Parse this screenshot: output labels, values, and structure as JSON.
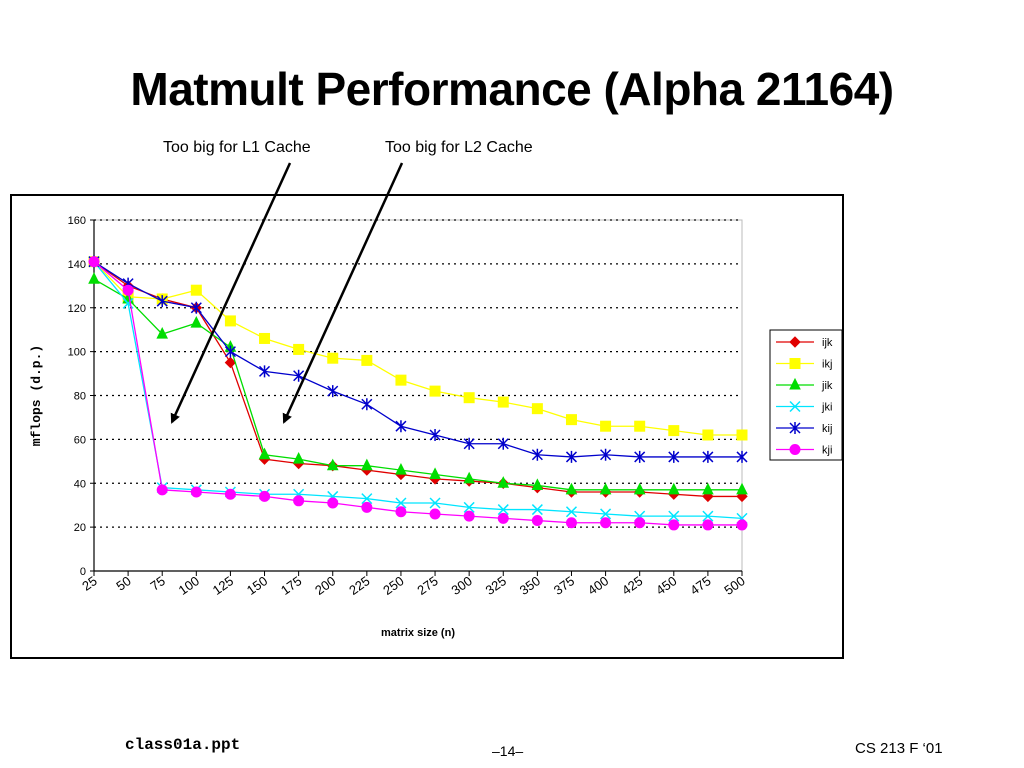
{
  "slide": {
    "title": "Matmult Performance (Alpha 21164)",
    "annotation_l1": "Too big for L1 Cache",
    "annotation_l2": "Too big for L2 Cache",
    "footer_left": "class01a.ppt",
    "footer_center": "–14–",
    "footer_right": "CS 213 F ‘01"
  },
  "chart_data": {
    "type": "line",
    "title": "",
    "xlabel": "matrix size (n)",
    "ylabel": "mflops (d.p.)",
    "ylim": [
      0,
      160
    ],
    "yticks": [
      0,
      20,
      40,
      60,
      80,
      100,
      120,
      140,
      160
    ],
    "grid": "dotted horizontal",
    "legend_position": "right",
    "categories": [
      "25",
      "50",
      "75",
      "100",
      "125",
      "150",
      "175",
      "200",
      "225",
      "250",
      "275",
      "300",
      "325",
      "350",
      "375",
      "400",
      "425",
      "450",
      "475",
      "500"
    ],
    "series": [
      {
        "name": "ijk",
        "color": "#e00000",
        "marker": "diamond",
        "values": [
          141,
          130,
          124,
          120,
          95,
          51,
          49,
          48,
          46,
          44,
          42,
          41,
          40,
          38,
          36,
          36,
          36,
          35,
          34,
          34
        ]
      },
      {
        "name": "ikj",
        "color": "#ffff00",
        "marker": "square",
        "values": [
          141,
          125,
          124,
          128,
          114,
          106,
          101,
          97,
          96,
          87,
          82,
          79,
          77,
          74,
          69,
          66,
          66,
          64,
          62,
          62
        ]
      },
      {
        "name": "jik",
        "color": "#00dd00",
        "marker": "triangle",
        "values": [
          133,
          124,
          108,
          113,
          102,
          53,
          51,
          48,
          48,
          46,
          44,
          42,
          40,
          39,
          37,
          37,
          37,
          37,
          37,
          37
        ]
      },
      {
        "name": "jki",
        "color": "#00e5ff",
        "marker": "x",
        "values": [
          141,
          122,
          38,
          37,
          36,
          35,
          35,
          34,
          33,
          31,
          31,
          29,
          28,
          28,
          27,
          26,
          25,
          25,
          25,
          24
        ]
      },
      {
        "name": "kij",
        "color": "#0000cc",
        "marker": "star",
        "values": [
          141,
          131,
          123,
          120,
          100,
          91,
          89,
          82,
          76,
          66,
          62,
          58,
          58,
          53,
          52,
          53,
          52,
          52,
          52,
          52
        ]
      },
      {
        "name": "kji",
        "color": "#ff00ff",
        "marker": "circle",
        "values": [
          141,
          128,
          37,
          36,
          35,
          34,
          32,
          31,
          29,
          27,
          26,
          25,
          24,
          23,
          22,
          22,
          22,
          21,
          21,
          21
        ]
      }
    ]
  }
}
